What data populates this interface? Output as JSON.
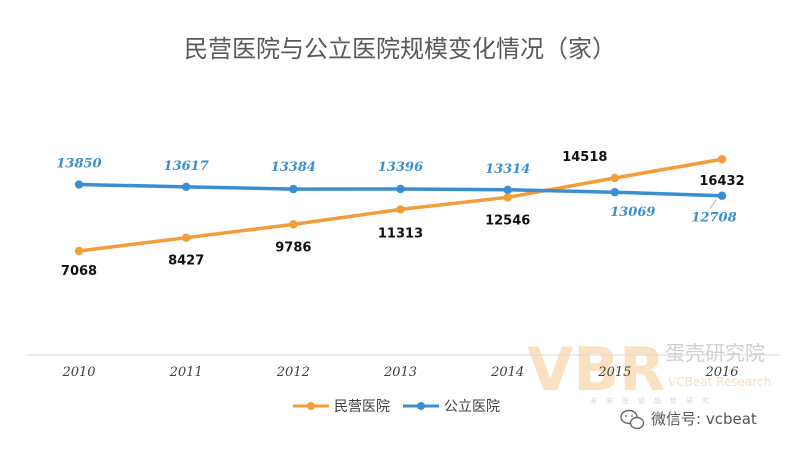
{
  "chart_data": {
    "type": "line",
    "title": "民营医院与公立医院规模变化情况（家）",
    "categories": [
      "2010",
      "2011",
      "2012",
      "2013",
      "2014",
      "2015",
      "2016"
    ],
    "series": [
      {
        "name": "民营医院",
        "color": "#f39c3a",
        "values": [
          7068,
          8427,
          9786,
          11313,
          12546,
          14518,
          16432
        ]
      },
      {
        "name": "公立医院",
        "color": "#3b8fd0",
        "values": [
          13850,
          13617,
          13384,
          13396,
          13314,
          13069,
          12708
        ]
      }
    ],
    "legend_position": "bottom-center",
    "grid": false
  },
  "watermark": {
    "logo_text": "VBR",
    "brand_cn": "蛋壳研究院",
    "brand_en": "VCBeat Research",
    "tagline": "未来医健趋势研究"
  },
  "wechat": {
    "text": "微信号: vcbeat",
    "icon": "wechat-icon"
  }
}
